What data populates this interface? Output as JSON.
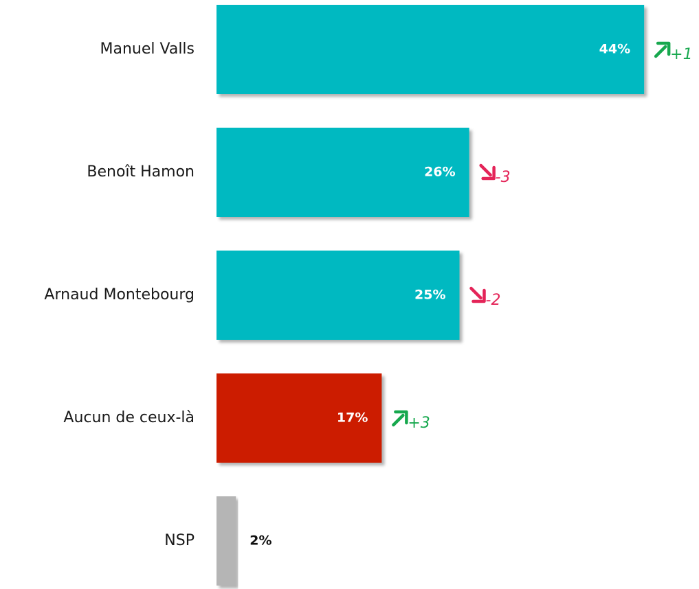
{
  "chart_data": {
    "type": "hbar",
    "categories": [
      "Manuel Valls",
      "Benoît Hamon",
      "Arnaud Montebourg",
      "Aucun de ceux-là",
      "NSP"
    ],
    "values": [
      44,
      26,
      25,
      17,
      2
    ],
    "value_labels": [
      "44%",
      "26%",
      "25%",
      "17%",
      "2%"
    ],
    "changes": [
      "+1",
      "-3",
      "-2",
      "+3",
      null
    ],
    "colors": [
      "#00b9c1",
      "#00b9c1",
      "#00b9c1",
      "#cc1f00",
      "#b5b5b5"
    ],
    "change_colors": {
      "up": "#17a84e",
      "down": "#e42458"
    }
  }
}
